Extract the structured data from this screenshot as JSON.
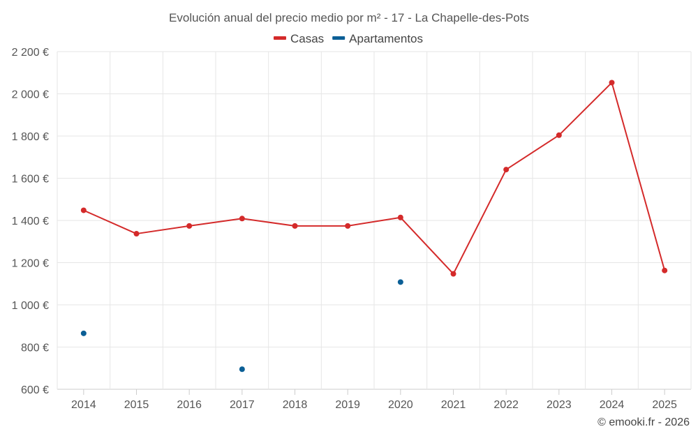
{
  "chart_data": {
    "type": "line",
    "title": "Evolución anual del precio medio por m² - 17 - La Chapelle-des-Pots",
    "categories": [
      "2014",
      "2015",
      "2016",
      "2017",
      "2018",
      "2019",
      "2020",
      "2021",
      "2022",
      "2023",
      "2024",
      "2025"
    ],
    "series": [
      {
        "name": "Casas",
        "color": "#d42a2a",
        "style": "line",
        "values": [
          1448,
          1337,
          1374,
          1409,
          1374,
          1374,
          1414,
          1147,
          1641,
          1804,
          2053,
          1163
        ]
      },
      {
        "name": "Apartamentos",
        "color": "#0b5f96",
        "style": "points",
        "values": [
          865,
          null,
          null,
          695,
          null,
          null,
          1108,
          null,
          null,
          null,
          null,
          null
        ]
      }
    ],
    "ylim": [
      600,
      2200
    ],
    "yticks": [
      600,
      800,
      1000,
      1200,
      1400,
      1600,
      1800,
      2000,
      2200
    ],
    "ytick_labels": [
      "600 €",
      "800 €",
      "1 000 €",
      "1 200 €",
      "1 400 €",
      "1 600 €",
      "1 800 €",
      "2 000 €",
      "2 200 €"
    ],
    "xlabel": "",
    "ylabel": "",
    "grid": true,
    "legend_position": "top-center"
  },
  "credit": "© emooki.fr - 2026"
}
